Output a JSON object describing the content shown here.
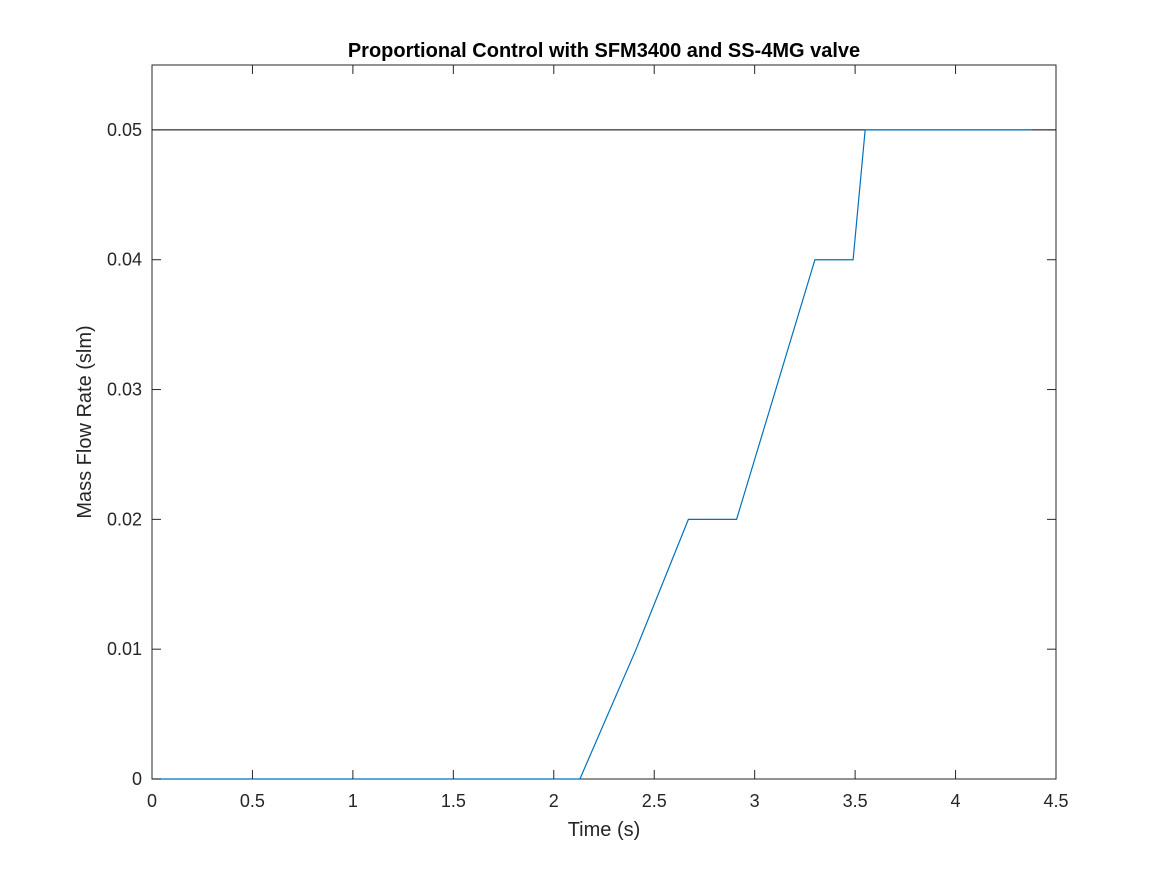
{
  "chart_data": {
    "type": "line",
    "title": "Proportional Control with SFM3400 and SS-4MG valve",
    "xlabel": "Time (s)",
    "ylabel": "Mass Flow Rate (slm)",
    "xlim": [
      0,
      4.5
    ],
    "ylim": [
      0,
      0.055
    ],
    "xticks": [
      0,
      0.5,
      1,
      1.5,
      2,
      2.5,
      3,
      3.5,
      4,
      4.5
    ],
    "xtick_labels": [
      "0",
      "0.5",
      "1",
      "1.5",
      "2",
      "2.5",
      "3",
      "3.5",
      "4",
      "4.5"
    ],
    "yticks": [
      0,
      0.01,
      0.02,
      0.03,
      0.04,
      0.05
    ],
    "ytick_labels": [
      "0",
      "0.01",
      "0.02",
      "0.03",
      "0.04",
      "0.05"
    ],
    "grid": false,
    "box": true,
    "reference_lines": [
      {
        "orientation": "horizontal",
        "y": 0.05,
        "color": "#000000"
      }
    ],
    "series": [
      {
        "color": "#0072BD",
        "x": [
          0,
          2.13,
          2.41,
          2.67,
          2.91,
          3.3,
          3.49,
          3.55,
          4.38
        ],
        "y": [
          0,
          0,
          0.01,
          0.02,
          0.02,
          0.04,
          0.04,
          0.05,
          0.05
        ]
      }
    ]
  }
}
